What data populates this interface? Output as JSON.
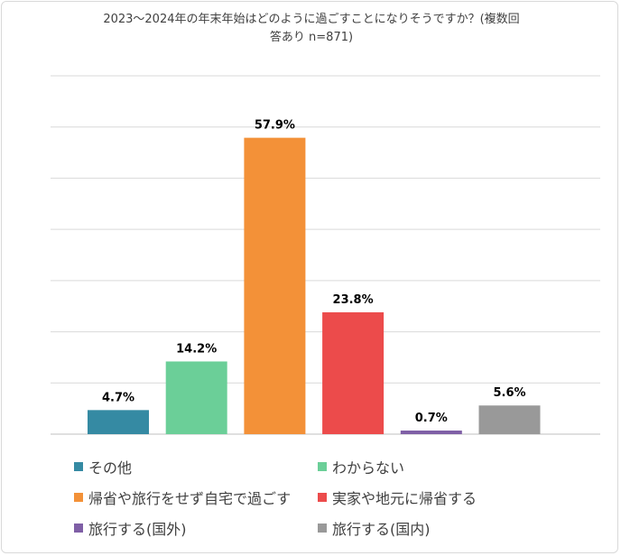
{
  "chart_data": {
    "type": "bar",
    "title": "2023～2024年の年末年始はどのように過ごすことになりそうですか？(複数回答あり n=871)",
    "title_lines": [
      "2023～2024年の年末年始はどのように過ごすことになりそうですか？(複数回",
      "答あり n=871)"
    ],
    "categories": [
      "その他",
      "わからない",
      "帰省や旅行をせず自宅で過ごす",
      "実家や地元に帰省する",
      "旅行する(国外)",
      "旅行する(国内)"
    ],
    "values": [
      4.7,
      14.2,
      57.9,
      23.8,
      0.7,
      5.6
    ],
    "labels": [
      "4.7%",
      "14.2%",
      "57.9%",
      "23.8%",
      "0.7%",
      "5.6%"
    ],
    "colors": [
      "#358aa3",
      "#6bcf98",
      "#f39138",
      "#ec4b4b",
      "#7f5fa6",
      "#999999"
    ],
    "ylim": [
      0,
      70
    ],
    "grid": true,
    "legend_position": "bottom",
    "xlabel": "",
    "ylabel": ""
  }
}
